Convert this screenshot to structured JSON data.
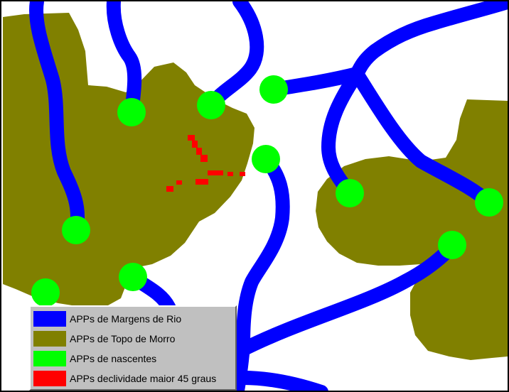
{
  "map": {
    "colors": {
      "river": "#0000ff",
      "hilltop": "#808000",
      "spring": "#00ff00",
      "slope": "#ff0000",
      "background": "#ffffff"
    }
  },
  "legend": {
    "items": [
      {
        "label": "APPs de Margens de Rio",
        "color": "#0000ff",
        "icon": "river-swatch"
      },
      {
        "label": "APPs de Topo de Morro",
        "color": "#808000",
        "icon": "hilltop-swatch"
      },
      {
        "label": "APPs de nascentes",
        "color": "#00ff00",
        "icon": "spring-swatch"
      },
      {
        "label": "APPs declividade maior  45 graus",
        "color": "#ff0000",
        "icon": "slope-swatch"
      }
    ]
  }
}
